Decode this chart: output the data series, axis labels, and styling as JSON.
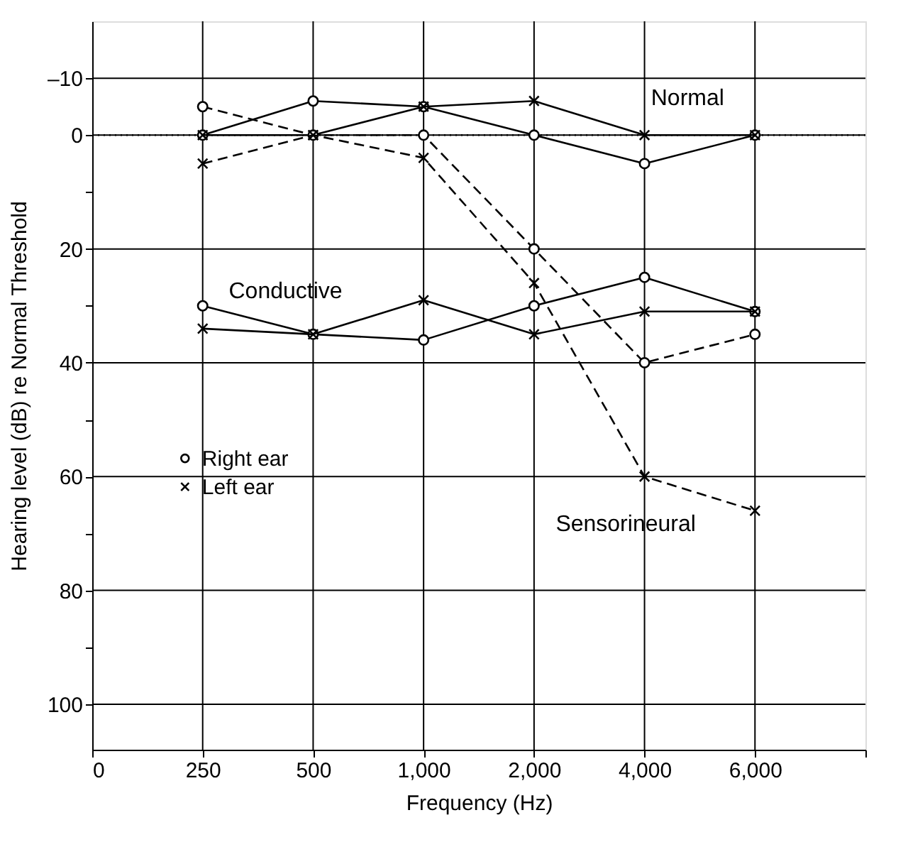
{
  "chart_data": {
    "type": "line",
    "xlabel": "Frequency (Hz)",
    "ylabel": "Hearing level (dB) re Normal Threshold",
    "categories": [
      "0",
      "250",
      "500",
      "1,000",
      "2,000",
      "4,000",
      "6,000",
      null
    ],
    "ylim": [
      108,
      -20
    ],
    "yticks": [
      {
        "value": -10,
        "label": "–10"
      },
      0,
      {
        "value": 10,
        "label": null
      },
      20,
      {
        "value": 30,
        "label": null
      },
      40,
      {
        "value": 50,
        "label": null
      },
      60,
      {
        "value": 70,
        "label": null
      },
      80,
      {
        "value": 90,
        "label": null
      },
      100
    ],
    "grid": true,
    "legend": "left",
    "ref_lines": [
      {
        "axis": "y",
        "value": 0,
        "line_style": "dotted",
        "color": "#000000"
      }
    ],
    "annotations": [
      "Normal",
      "Conductive",
      "Sensorineural"
    ],
    "series": [
      {
        "name": "Right ear",
        "color": "#000000",
        "marker": "circle",
        "line_style": "solid",
        "values": [
          null,
          0,
          -6,
          -5,
          0,
          5,
          0,
          null
        ]
      },
      {
        "name": "Left ear",
        "color": "#000000",
        "marker": "cross",
        "line_style": "solid",
        "values": [
          null,
          0,
          0,
          -5,
          -6,
          0,
          0,
          null
        ]
      },
      {
        "color": "#000000",
        "marker": "circle",
        "line_style": "solid",
        "values": [
          null,
          30,
          35,
          36,
          30,
          25,
          31,
          null
        ]
      },
      {
        "color": "#000000",
        "marker": "cross",
        "line_style": "solid",
        "values": [
          null,
          34,
          35,
          29,
          35,
          31,
          31,
          null
        ]
      },
      {
        "color": "#000000",
        "marker": "circle",
        "line_style": "dashed",
        "values": [
          null,
          -5,
          0,
          0,
          20,
          40,
          35,
          null
        ]
      },
      {
        "color": "#000000",
        "marker": "cross",
        "line_style": "dashed",
        "values": [
          null,
          5,
          0,
          4,
          26,
          60,
          66,
          null
        ]
      }
    ]
  }
}
